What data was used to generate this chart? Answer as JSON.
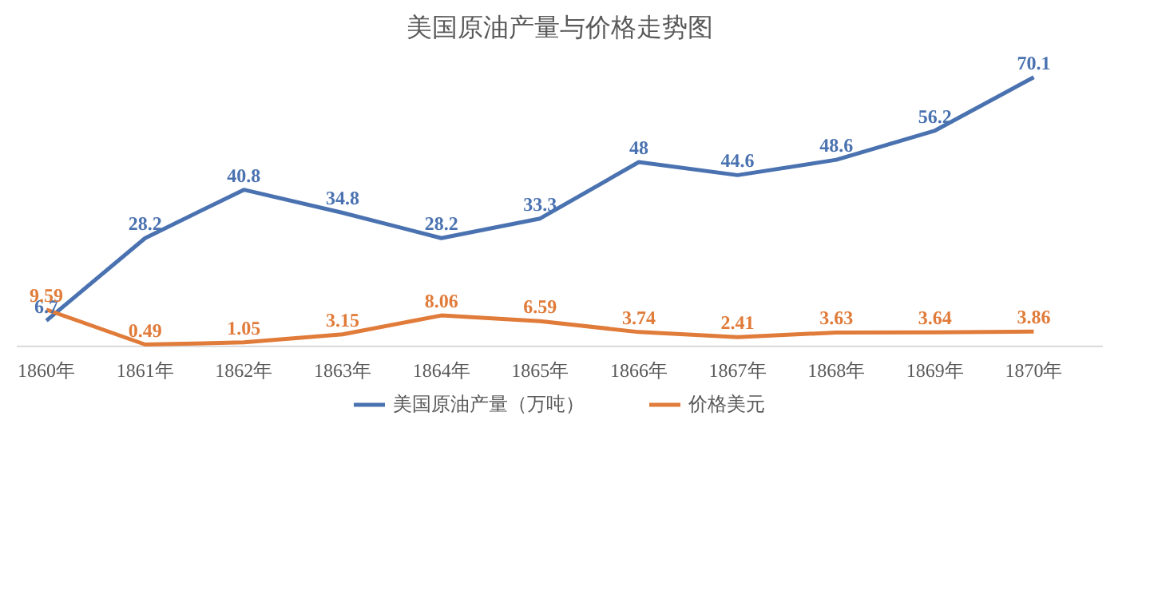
{
  "chart_data": {
    "type": "line",
    "title": "美国原油产量与价格走势图",
    "categories": [
      "1860年",
      "1861年",
      "1862年",
      "1863年",
      "1864年",
      "1865年",
      "1866年",
      "1867年",
      "1868年",
      "1869年",
      "1870年"
    ],
    "series": [
      {
        "name": "美国原油产量（万吨）",
        "color": "#4a72b0",
        "values": [
          6.7,
          28.2,
          40.8,
          34.8,
          28.2,
          33.3,
          48,
          44.6,
          48.6,
          56.2,
          70.1
        ]
      },
      {
        "name": "价格美元",
        "color": "#e07b39",
        "values": [
          9.59,
          0.49,
          1.05,
          3.15,
          8.06,
          6.59,
          3.74,
          2.41,
          3.63,
          3.64,
          3.86
        ]
      }
    ],
    "data_labels": true,
    "legend": "bottom",
    "grid": false,
    "marker": "none",
    "line_style": "solid"
  }
}
